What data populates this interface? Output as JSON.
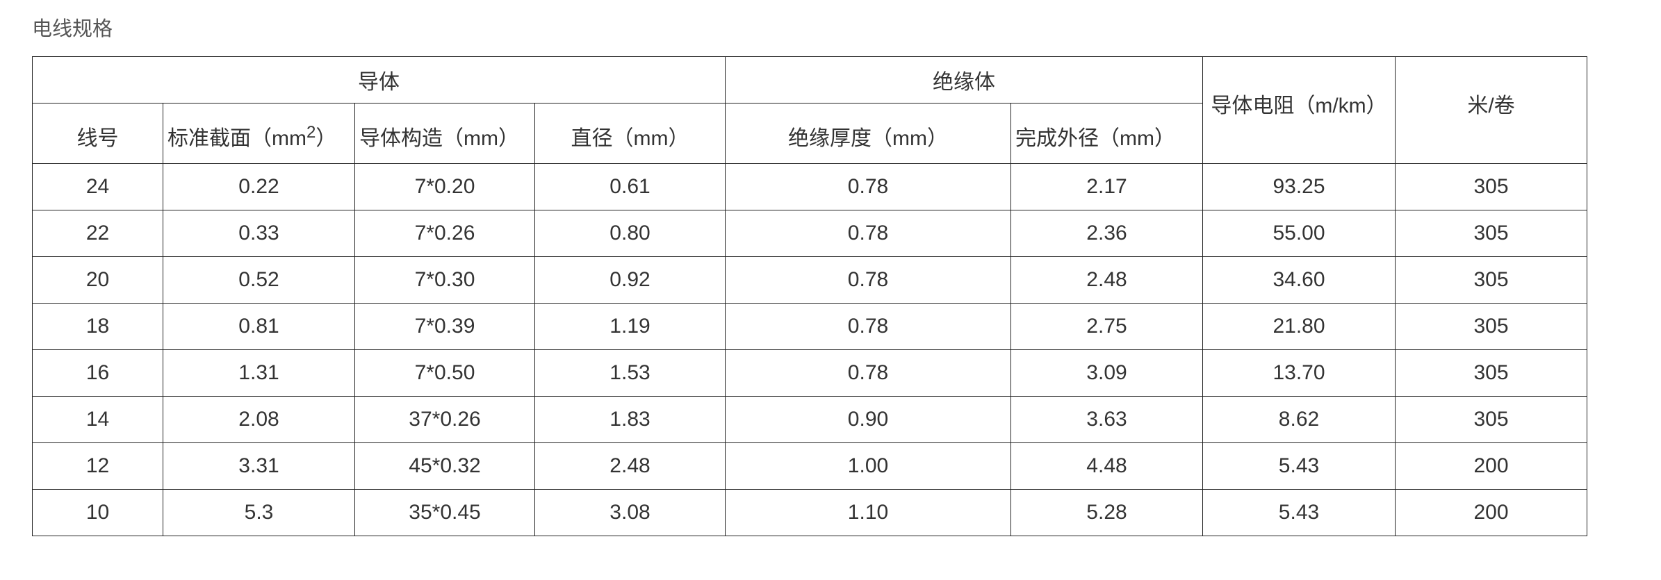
{
  "title": "电线规格",
  "table": {
    "group_headers": {
      "conductor": "导体",
      "insulation": "绝缘体",
      "resistance": "导体电阻（m/km）",
      "meters_per_roll": "米/卷"
    },
    "sub_headers": {
      "gauge": "线号",
      "cross_section": "标准截面（mm",
      "cross_section_sup": "2",
      "cross_section_close": "）",
      "construction": "导体构造（mm）",
      "diameter": "直径（mm）",
      "insulation_thickness": "绝缘厚度（mm）",
      "outer_diameter": "完成外径（mm）"
    },
    "rows": [
      [
        "24",
        "0.22",
        "7*0.20",
        "0.61",
        "0.78",
        "2.17",
        "93.25",
        "305"
      ],
      [
        "22",
        "0.33",
        "7*0.26",
        "0.80",
        "0.78",
        "2.36",
        "55.00",
        "305"
      ],
      [
        "20",
        "0.52",
        "7*0.30",
        "0.92",
        "0.78",
        "2.48",
        "34.60",
        "305"
      ],
      [
        "18",
        "0.81",
        "7*0.39",
        "1.19",
        "0.78",
        "2.75",
        "21.80",
        "305"
      ],
      [
        "16",
        "1.31",
        "7*0.50",
        "1.53",
        "0.78",
        "3.09",
        "13.70",
        "305"
      ],
      [
        "14",
        "2.08",
        "37*0.26",
        "1.83",
        "0.90",
        "3.63",
        "8.62",
        "305"
      ],
      [
        "12",
        "3.31",
        "45*0.32",
        "2.48",
        "1.00",
        "4.48",
        "5.43",
        "200"
      ],
      [
        "10",
        "5.3",
        "35*0.45",
        "3.08",
        "1.10",
        "5.28",
        "5.43",
        "200"
      ]
    ]
  }
}
